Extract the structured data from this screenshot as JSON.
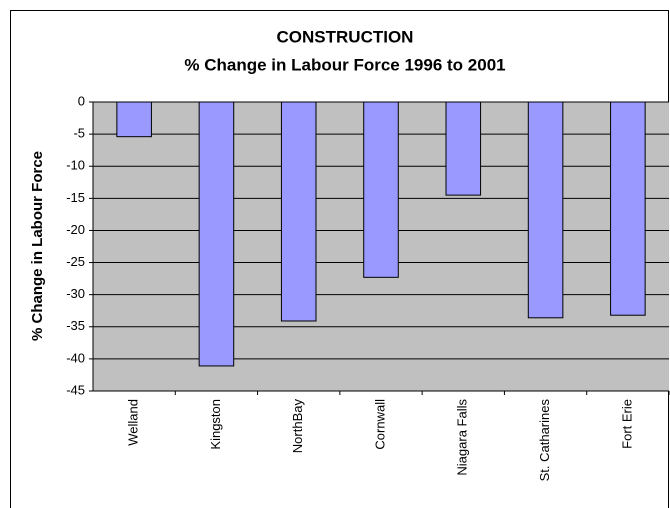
{
  "chart_data": {
    "type": "bar",
    "title": "CONSTRUCTION",
    "subtitle": "% Change in Labour Force 1996 to 2001",
    "y_label": "% Change in Labour Force",
    "categories": [
      "Welland",
      "Kingston",
      "NorthBay",
      "Cornwall",
      "Niagara Falls",
      "St. Catharines",
      "Fort Erie"
    ],
    "values": [
      -5.4,
      -41.1,
      -34.1,
      -27.3,
      -14.5,
      -33.6,
      -33.2
    ],
    "color": "#9999ff",
    "ylim": [
      -45,
      0
    ],
    "yticks": [
      0,
      -5,
      -10,
      -15,
      -20,
      -25,
      -30,
      -35,
      -40,
      -45
    ],
    "grid": true
  }
}
